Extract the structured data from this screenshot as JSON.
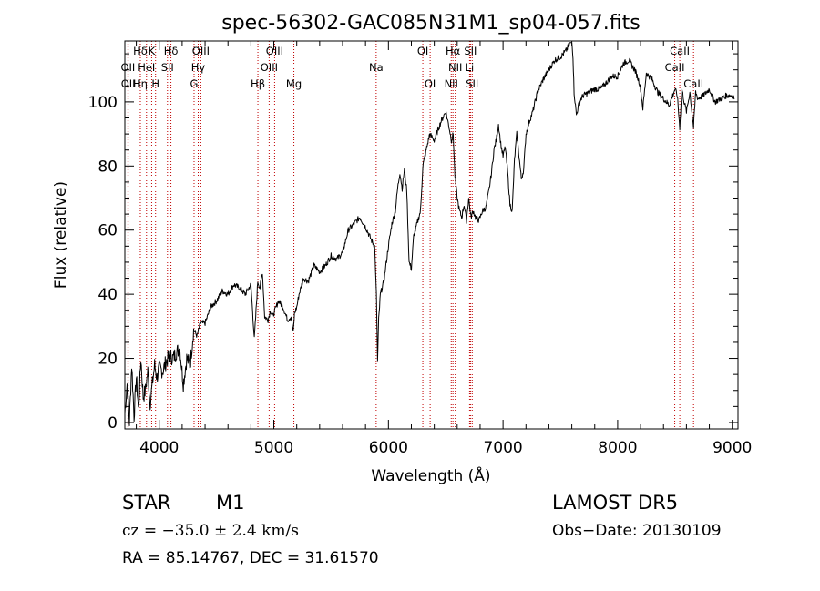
{
  "chart_data": {
    "type": "line",
    "title": "spec-56302-GAC085N31M1_sp04-057.fits",
    "xlabel": "Wavelength (Å)",
    "ylabel": "Flux (relative)",
    "xlim": [
      3700,
      9050
    ],
    "ylim": [
      -2,
      119
    ],
    "xticks": [
      4000,
      5000,
      6000,
      7000,
      8000,
      9000
    ],
    "yticks": [
      0,
      20,
      40,
      60,
      80,
      100
    ],
    "grid": false,
    "series": [
      {
        "x": [
          3700,
          3720,
          3740,
          3760,
          3780,
          3800,
          3820,
          3840,
          3860,
          3880,
          3900,
          3920,
          3940,
          3960,
          3980,
          4000,
          4030,
          4060,
          4090,
          4120,
          4150,
          4180,
          4210,
          4240,
          4270,
          4300,
          4330,
          4360,
          4400,
          4450,
          4500,
          4550,
          4600,
          4650,
          4700,
          4750,
          4800,
          4830,
          4860,
          4880,
          4900,
          4920,
          4950,
          4970,
          4990,
          5010,
          5040,
          5080,
          5120,
          5150,
          5170,
          5180,
          5200,
          5220,
          5260,
          5300,
          5350,
          5400,
          5450,
          5500,
          5550,
          5600,
          5650,
          5700,
          5750,
          5800,
          5850,
          5880,
          5895,
          5905,
          5915,
          5930,
          5960,
          6000,
          6030,
          6060,
          6080,
          6100,
          6120,
          6140,
          6160,
          6180,
          6200,
          6220,
          6250,
          6280,
          6300,
          6330,
          6360,
          6400,
          6430,
          6460,
          6500,
          6530,
          6550,
          6565,
          6580,
          6600,
          6620,
          6640,
          6660,
          6680,
          6700,
          6720,
          6740,
          6760,
          6790,
          6820,
          6850,
          6880,
          6900,
          6920,
          6940,
          6960,
          6980,
          7000,
          7020,
          7040,
          7060,
          7080,
          7100,
          7120,
          7140,
          7160,
          7180,
          7200,
          7230,
          7260,
          7300,
          7350,
          7400,
          7450,
          7500,
          7550,
          7580,
          7600,
          7610,
          7620,
          7640,
          7660,
          7680,
          7700,
          7750,
          7800,
          7850,
          7900,
          7950,
          8000,
          8050,
          8100,
          8130,
          8150,
          8170,
          8190,
          8200,
          8220,
          8250,
          8300,
          8350,
          8400,
          8450,
          8480,
          8500,
          8520,
          8542,
          8560,
          8580,
          8600,
          8630,
          8662,
          8680,
          8700,
          8750,
          8800,
          8850,
          8900,
          8950,
          9000,
          9020
        ],
        "y": [
          3,
          12,
          0,
          18,
          2,
          14,
          4,
          20,
          8,
          10,
          16,
          6,
          12,
          18,
          14,
          17,
          16,
          19,
          21,
          20,
          22,
          23,
          12,
          20,
          18,
          29,
          27,
          31,
          31,
          36,
          38,
          41,
          40,
          43,
          42,
          40,
          43,
          26,
          44,
          42,
          47,
          33,
          32,
          35,
          33,
          35,
          38,
          36,
          32,
          33,
          28,
          34,
          36,
          40,
          45,
          44,
          49,
          47,
          49,
          52,
          51,
          53,
          60,
          62,
          64,
          61,
          57,
          55,
          40,
          19,
          32,
          40,
          44,
          55,
          62,
          66,
          73,
          78,
          73,
          79,
          72,
          50,
          48,
          58,
          62,
          66,
          80,
          85,
          90,
          88,
          91,
          94,
          97,
          92,
          88,
          90,
          77,
          70,
          66,
          64,
          68,
          63,
          70,
          64,
          66,
          64,
          63,
          66,
          67,
          73,
          78,
          85,
          88,
          93,
          87,
          83,
          86,
          78,
          68,
          66,
          82,
          90,
          83,
          76,
          79,
          90,
          94,
          97,
          103,
          107,
          110,
          113,
          114,
          116,
          118,
          120,
          114,
          103,
          96,
          99,
          101,
          102,
          103,
          104,
          104,
          106,
          108,
          108,
          112,
          113,
          111,
          110,
          108,
          106,
          104,
          98,
          109,
          107,
          103,
          101,
          99,
          102,
          104,
          102,
          92,
          104,
          100,
          97,
          103,
          92,
          103,
          101,
          102,
          104,
          100,
          101,
          102,
          102,
          101
        ],
        "color": "#000000"
      }
    ],
    "line_markers": [
      {
        "label": "Hδ",
        "x": 3835,
        "row": 0
      },
      {
        "label": "K",
        "x": 3934,
        "row": 0
      },
      {
        "label": "Hδ",
        "x": 4102,
        "row": 0
      },
      {
        "label": "OIII",
        "x": 4363,
        "row": 0
      },
      {
        "label": "OIII",
        "x": 5007,
        "row": 0
      },
      {
        "label": "OI",
        "x": 6300,
        "row": 0
      },
      {
        "label": "Hα",
        "x": 6563,
        "row": 0
      },
      {
        "label": "SII",
        "x": 6716,
        "row": 0
      },
      {
        "label": "CaII",
        "x": 8542,
        "row": 0
      },
      {
        "label": "OII",
        "x": 3727,
        "row": 1
      },
      {
        "label": "HeI",
        "x": 3889,
        "row": 1
      },
      {
        "label": "SII",
        "x": 4072,
        "row": 1
      },
      {
        "label": "Hγ",
        "x": 4340,
        "row": 1
      },
      {
        "label": "OIII",
        "x": 4959,
        "row": 1
      },
      {
        "label": "NII",
        "x": 6583,
        "row": 1
      },
      {
        "label": "Li",
        "x": 6708,
        "row": 1
      },
      {
        "label": "CaII",
        "x": 8498,
        "row": 1
      },
      {
        "label": "OII",
        "x": 3729,
        "row": 2
      },
      {
        "label": "Hη",
        "x": 3835,
        "row": 2
      },
      {
        "label": "H",
        "x": 3968,
        "row": 2
      },
      {
        "label": "G",
        "x": 4304,
        "row": 2
      },
      {
        "label": "Hβ",
        "x": 4861,
        "row": 2
      },
      {
        "label": "Mg",
        "x": 5175,
        "row": 2
      },
      {
        "label": "Na",
        "x": 5893,
        "row": 1
      },
      {
        "label": "OI",
        "x": 6364,
        "row": 2
      },
      {
        "label": "NII",
        "x": 6548,
        "row": 2
      },
      {
        "label": "SII",
        "x": 6731,
        "row": 2
      },
      {
        "label": "CaII",
        "x": 8662,
        "row": 2
      }
    ]
  },
  "info": {
    "object_class": "STAR",
    "subclass": "M1",
    "survey": "LAMOST  DR5",
    "redshift": "cz = −35.0 ± 2.4 km/s",
    "obs_date": "Obs−Date: 20130109",
    "coords": "RA =  85.14767, DEC =  31.61570"
  }
}
